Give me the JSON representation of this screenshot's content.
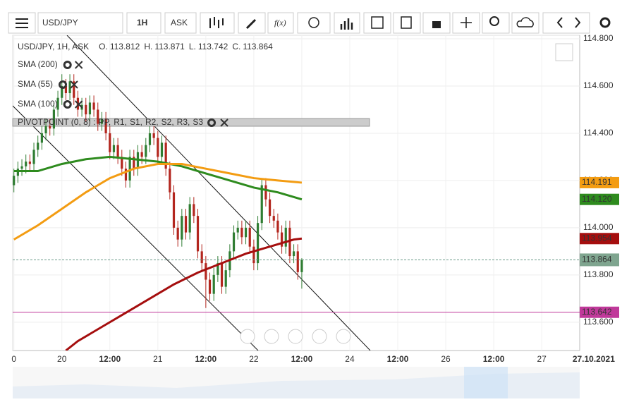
{
  "toolbar": {
    "symbol": "USD/JPY",
    "interval": "1H",
    "side": "ASK",
    "fx": "f(x)"
  },
  "chart_data": {
    "type": "candlestick",
    "title": "USD/JPY, 1H, ASK",
    "ohlc_labels": [
      "O.",
      "H.",
      "L.",
      "C."
    ],
    "x": [
      -12,
      -11,
      -10,
      -9,
      -8,
      -7,
      -6,
      -5,
      -4,
      -3,
      -2,
      -1,
      0,
      1,
      2,
      3,
      4,
      5,
      6,
      7,
      8,
      9,
      10,
      11,
      12,
      13,
      14,
      15,
      16,
      17,
      18,
      19,
      20,
      21,
      22,
      23,
      24,
      25,
      26,
      27,
      28,
      29,
      30,
      31,
      32,
      33,
      34,
      35,
      36,
      37,
      38,
      39,
      40,
      41,
      42,
      43,
      44,
      45,
      46,
      47,
      48,
      49,
      50,
      51,
      52,
      53,
      54,
      55,
      56,
      57,
      58,
      59,
      60
    ],
    "open": [
      114.18,
      114.22,
      114.25,
      114.26,
      114.28,
      114.27,
      114.33,
      114.36,
      114.4,
      114.43,
      114.42,
      114.5,
      114.55,
      114.6,
      114.57,
      114.62,
      114.55,
      114.5,
      114.52,
      114.48,
      114.53,
      114.5,
      114.44,
      114.46,
      114.4,
      114.32,
      114.35,
      114.3,
      114.25,
      114.2,
      114.3,
      114.25,
      114.32,
      114.3,
      114.35,
      114.4,
      114.38,
      114.3,
      114.36,
      114.25,
      114.15,
      114.0,
      113.95,
      114.05,
      113.98,
      114.1,
      114.05,
      113.9,
      113.85,
      113.78,
      113.72,
      113.8,
      113.85,
      113.75,
      113.82,
      113.9,
      113.98,
      114.0,
      113.96,
      114.0,
      113.92,
      113.85,
      114.02,
      114.18,
      114.12,
      114.05,
      114.03,
      113.98,
      113.92,
      114.0,
      113.88,
      113.9,
      113.812
    ],
    "high": [
      114.25,
      114.28,
      114.29,
      114.31,
      114.31,
      114.36,
      114.39,
      114.43,
      114.46,
      114.46,
      114.53,
      114.58,
      114.65,
      114.63,
      114.65,
      114.65,
      114.58,
      114.55,
      114.55,
      114.56,
      114.56,
      114.53,
      114.49,
      114.49,
      114.43,
      114.38,
      114.38,
      114.33,
      114.28,
      114.33,
      114.33,
      114.35,
      114.35,
      114.38,
      114.43,
      114.43,
      114.41,
      114.39,
      114.39,
      114.28,
      114.18,
      114.03,
      114.08,
      114.08,
      114.13,
      114.13,
      114.08,
      113.93,
      113.88,
      113.81,
      113.83,
      113.88,
      113.88,
      113.85,
      113.93,
      114.01,
      114.03,
      114.03,
      114.03,
      114.03,
      113.95,
      114.05,
      114.21,
      114.21,
      114.15,
      114.08,
      114.06,
      114.01,
      114.03,
      114.03,
      113.93,
      113.93,
      113.871
    ],
    "low": [
      114.15,
      114.19,
      114.22,
      114.23,
      114.24,
      114.24,
      114.3,
      114.33,
      114.37,
      114.39,
      114.39,
      114.47,
      114.52,
      114.54,
      114.54,
      114.52,
      114.47,
      114.47,
      114.45,
      114.45,
      114.47,
      114.41,
      114.41,
      114.37,
      114.29,
      114.29,
      114.27,
      114.22,
      114.17,
      114.17,
      114.22,
      114.22,
      114.27,
      114.27,
      114.32,
      114.35,
      114.27,
      114.27,
      114.22,
      114.12,
      113.97,
      113.92,
      113.92,
      113.95,
      113.95,
      114.02,
      113.87,
      113.82,
      113.66,
      113.69,
      113.69,
      113.77,
      113.72,
      113.72,
      113.79,
      113.87,
      113.95,
      113.93,
      113.93,
      113.89,
      113.82,
      113.82,
      113.99,
      114.09,
      114.02,
      114.0,
      113.95,
      113.89,
      113.89,
      113.85,
      113.85,
      113.78,
      113.742
    ],
    "close": [
      114.22,
      114.25,
      114.26,
      114.28,
      114.27,
      114.33,
      114.36,
      114.4,
      114.43,
      114.42,
      114.5,
      114.55,
      114.6,
      114.57,
      114.62,
      114.55,
      114.5,
      114.52,
      114.48,
      114.53,
      114.5,
      114.44,
      114.46,
      114.4,
      114.32,
      114.35,
      114.3,
      114.25,
      114.2,
      114.3,
      114.25,
      114.32,
      114.3,
      114.35,
      114.4,
      114.38,
      114.3,
      114.36,
      114.25,
      114.15,
      114.0,
      113.95,
      114.05,
      113.98,
      114.1,
      114.05,
      113.9,
      113.85,
      113.78,
      113.72,
      113.8,
      113.85,
      113.75,
      113.82,
      113.9,
      113.98,
      114.0,
      113.96,
      114.0,
      113.92,
      113.85,
      114.02,
      114.18,
      114.12,
      114.05,
      114.03,
      113.98,
      113.92,
      114.0,
      113.88,
      113.9,
      113.812,
      113.864
    ],
    "up_color": "#2f7d32",
    "down_color": "#b3261e",
    "last_label": "113.864",
    "series": [
      {
        "name": "SMA (200)",
        "color": "#a50e0e",
        "x": [
          1,
          4,
          10,
          16,
          22,
          28,
          34,
          40,
          46,
          52,
          58,
          60
        ],
        "values": [
          113.48,
          113.52,
          113.58,
          113.64,
          113.7,
          113.76,
          113.81,
          113.85,
          113.89,
          113.92,
          113.95,
          113.954
        ],
        "price_label": "113.954"
      },
      {
        "name": "SMA (55)",
        "color": "#2e8b1e",
        "x": [
          -12,
          -6,
          0,
          6,
          12,
          18,
          24,
          30,
          36,
          42,
          48,
          54,
          60
        ],
        "values": [
          114.24,
          114.24,
          114.27,
          114.29,
          114.3,
          114.29,
          114.28,
          114.26,
          114.23,
          114.2,
          114.17,
          114.15,
          114.12
        ],
        "price_label": "114.120"
      },
      {
        "name": "SMA (100)",
        "color": "#f39c12",
        "x": [
          -12,
          -6,
          0,
          6,
          12,
          18,
          24,
          30,
          36,
          42,
          48,
          54,
          60
        ],
        "values": [
          113.95,
          114.01,
          114.08,
          114.15,
          114.21,
          114.25,
          114.27,
          114.27,
          114.25,
          114.23,
          114.21,
          114.2,
          114.191
        ],
        "price_label": "114.191"
      }
    ],
    "pivot": {
      "name": "PIVOTPOINT (0, 8) :",
      "levels": [
        {
          "label": "PP,",
          "color": "#c0399a"
        },
        {
          "label": "R1,",
          "color": "#2e8b1e"
        },
        {
          "label": "S1,",
          "color": "#3366cc"
        },
        {
          "label": "R2,",
          "color": "#3366cc"
        },
        {
          "label": "S2,",
          "color": "#666666"
        },
        {
          "label": "R3,",
          "color": "#8b5a2b"
        },
        {
          "label": "S3",
          "color": "#c0399a"
        }
      ]
    },
    "levels": [
      {
        "value": 113.642,
        "label": "113.642",
        "color": "#c0399a"
      }
    ],
    "xlim": [
      -12.3,
      129.5
    ],
    "xticks": [
      {
        "value": -12,
        "label": "0"
      },
      {
        "value": 0,
        "label": "20"
      },
      {
        "value": 12,
        "label": "12:00"
      },
      {
        "value": 24,
        "label": "21"
      },
      {
        "value": 36,
        "label": "12:00"
      },
      {
        "value": 48,
        "label": "22"
      },
      {
        "value": 60,
        "label": "12:00"
      },
      {
        "value": 72,
        "label": "24"
      },
      {
        "value": 84,
        "label": "12:00"
      },
      {
        "value": 96,
        "label": "26"
      },
      {
        "value": 108,
        "label": "12:00"
      },
      {
        "value": 120,
        "label": "27"
      },
      {
        "value": 133,
        "label": "27.10.2021"
      }
    ],
    "ylim": [
      113.48,
      114.815
    ],
    "yticks": [
      {
        "value": 113.6,
        "label": "113.600"
      },
      {
        "value": 113.8,
        "label": "113.800"
      },
      {
        "value": 114.0,
        "label": "114.000"
      },
      {
        "value": 114.2,
        "label": "114.200"
      },
      {
        "value": 114.4,
        "label": "114.400"
      },
      {
        "value": 114.6,
        "label": "114.600"
      },
      {
        "value": 114.8,
        "label": "114.800"
      }
    ],
    "grid": true
  }
}
